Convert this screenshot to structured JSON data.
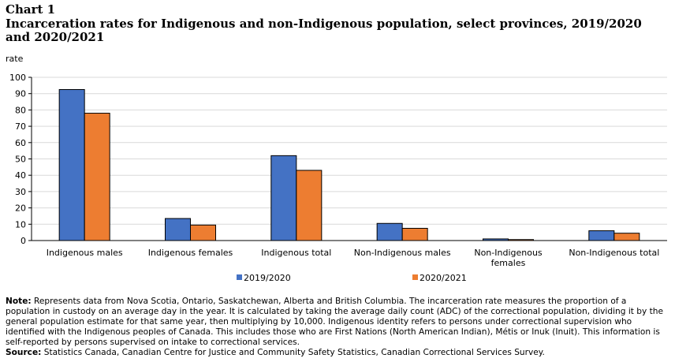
{
  "heading": {
    "chart_number": "Chart 1",
    "title": "Incarceration rates for Indigenous and non-Indigenous population, select provinces, 2019/2020 and 2020/2021"
  },
  "chart_data": {
    "type": "bar",
    "ylabel": "rate",
    "ylim": [
      0,
      100
    ],
    "yticks": [
      0,
      10,
      20,
      30,
      40,
      50,
      60,
      70,
      80,
      90,
      100
    ],
    "grid": true,
    "legend_position": "bottom",
    "categories": [
      "Indigenous males",
      "Indigenous females",
      "Indigenous total",
      "Non-Indigenous males",
      "Non-Indigenous females",
      "Non-Indigenous total"
    ],
    "series": [
      {
        "name": "2019/2020",
        "color": "#4472C4",
        "values": [
          92.5,
          13.5,
          52,
          10.5,
          1,
          6
        ]
      },
      {
        "name": "2020/2021",
        "color": "#ED7D31",
        "values": [
          78,
          9.5,
          43,
          7.5,
          0.6,
          4.5
        ]
      }
    ]
  },
  "notes": {
    "note_label": "Note:",
    "note_text": " Represents data from Nova Scotia, Ontario, Saskatchewan, Alberta and British Columbia. The incarceration rate measures the proportion of a population in custody on an average day in the year. It is calculated by taking the average daily count (ADC) of the correctional population, dividing it by the general population estimate for that same year, then multiplying by 10,000. Indigenous identity refers to persons under correctional supervision who identified with the Indigenous peoples of Canada. This includes those who are First Nations (North American Indian), Métis or Inuk (Inuit). This information is self-reported by persons supervised on intake to correctional services.",
    "source_label": "Source:",
    "source_text": " Statistics Canada, Canadian Centre for Justice and Community Safety Statistics, Canadian Correctional Services Survey."
  }
}
